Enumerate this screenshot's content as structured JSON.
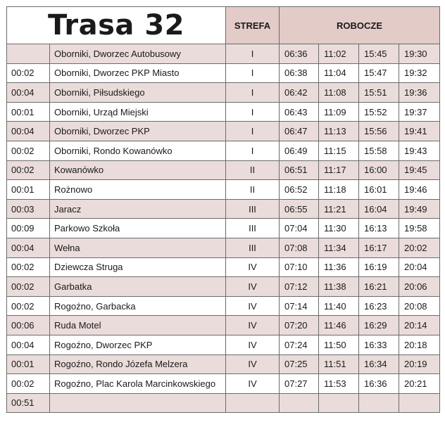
{
  "title": "Trasa 32",
  "headers": {
    "zone": "STREFA",
    "times": "ROBOCZE"
  },
  "colors": {
    "header_bg": "#e3cbc8",
    "shaded_row": "#eadcda",
    "border": "#6b6b6b"
  },
  "rows": [
    {
      "offset": "",
      "stop": "Oborniki, Dworzec Autobusowy",
      "zone": "I",
      "times": [
        "06:36",
        "11:02",
        "15:45",
        "19:30"
      ]
    },
    {
      "offset": "00:02",
      "stop": "Oborniki, Dworzec PKP Miasto",
      "zone": "I",
      "times": [
        "06:38",
        "11:04",
        "15:47",
        "19:32"
      ]
    },
    {
      "offset": "00:04",
      "stop": "Oborniki, Piłsudskiego",
      "zone": "I",
      "times": [
        "06:42",
        "11:08",
        "15:51",
        "19:36"
      ]
    },
    {
      "offset": "00:01",
      "stop": "Oborniki, Urząd Miejski",
      "zone": "I",
      "times": [
        "06:43",
        "11:09",
        "15:52",
        "19:37"
      ]
    },
    {
      "offset": "00:04",
      "stop": "Oborniki, Dworzec PKP",
      "zone": "I",
      "times": [
        "06:47",
        "11:13",
        "15:56",
        "19:41"
      ]
    },
    {
      "offset": "00:02",
      "stop": "Oborniki, Rondo Kowanówko",
      "zone": "I",
      "times": [
        "06:49",
        "11:15",
        "15:58",
        "19:43"
      ]
    },
    {
      "offset": "00:02",
      "stop": "Kowanówko",
      "zone": "II",
      "times": [
        "06:51",
        "11:17",
        "16:00",
        "19:45"
      ]
    },
    {
      "offset": "00:01",
      "stop": "Rożnowo",
      "zone": "II",
      "times": [
        "06:52",
        "11:18",
        "16:01",
        "19:46"
      ]
    },
    {
      "offset": "00:03",
      "stop": "Jaracz",
      "zone": "III",
      "times": [
        "06:55",
        "11:21",
        "16:04",
        "19:49"
      ]
    },
    {
      "offset": "00:09",
      "stop": "Parkowo Szkoła",
      "zone": "III",
      "times": [
        "07:04",
        "11:30",
        "16:13",
        "19:58"
      ]
    },
    {
      "offset": "00:04",
      "stop": "Wełna",
      "zone": "III",
      "times": [
        "07:08",
        "11:34",
        "16:17",
        "20:02"
      ]
    },
    {
      "offset": "00:02",
      "stop": "Dziewcza Struga",
      "zone": "IV",
      "times": [
        "07:10",
        "11:36",
        "16:19",
        "20:04"
      ]
    },
    {
      "offset": "00:02",
      "stop": "Garbatka",
      "zone": "IV",
      "times": [
        "07:12",
        "11:38",
        "16:21",
        "20:06"
      ]
    },
    {
      "offset": "00:02",
      "stop": "Rogoźno, Garbacka",
      "zone": "IV",
      "times": [
        "07:14",
        "11:40",
        "16:23",
        "20:08"
      ]
    },
    {
      "offset": "00:06",
      "stop": "Ruda Motel",
      "zone": "IV",
      "times": [
        "07:20",
        "11:46",
        "16:29",
        "20:14"
      ]
    },
    {
      "offset": "00:04",
      "stop": "Rogoźno, Dworzec PKP",
      "zone": "IV",
      "times": [
        "07:24",
        "11:50",
        "16:33",
        "20:18"
      ]
    },
    {
      "offset": "00:01",
      "stop": "Rogoźno, Rondo Józefa Melzera",
      "zone": "IV",
      "times": [
        "07:25",
        "11:51",
        "16:34",
        "20:19"
      ]
    },
    {
      "offset": "00:02",
      "stop": "Rogoźno, Plac Karola Marcinkowskiego",
      "zone": "IV",
      "times": [
        "07:27",
        "11:53",
        "16:36",
        "20:21"
      ]
    },
    {
      "offset": "00:51",
      "stop": "",
      "zone": "",
      "times": [
        "",
        "",
        "",
        ""
      ]
    }
  ]
}
